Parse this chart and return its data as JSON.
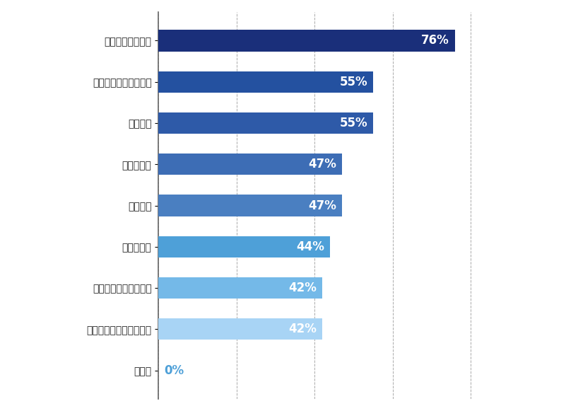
{
  "categories": [
    "その他",
    "研修・資格取得支援制度",
    "ワークライフバランス",
    "給与・待遇",
    "企業理念",
    "ブランド力",
    "事業内容",
    "説明会や面接時の印象",
    "社風・社員の人柄"
  ],
  "values": [
    0,
    42,
    42,
    44,
    47,
    47,
    55,
    55,
    76
  ],
  "bar_colors": [
    "#a8d4f5",
    "#a8d4f5",
    "#74b9e8",
    "#4ea0d8",
    "#4a7fc1",
    "#3d6db5",
    "#2e5aa8",
    "#2451a0",
    "#1a2f7a"
  ],
  "label_colors": [
    "#4ea0d8",
    "#ffffff",
    "#ffffff",
    "#ffffff",
    "#ffffff",
    "#ffffff",
    "#ffffff",
    "#ffffff",
    "#ffffff"
  ],
  "xlim": [
    0,
    100
  ],
  "bar_height": 0.52,
  "background_color": "#ffffff",
  "grid_color": "#aaaaaa",
  "label_fontsize": 12,
  "ylabel_fontsize": 9.5
}
